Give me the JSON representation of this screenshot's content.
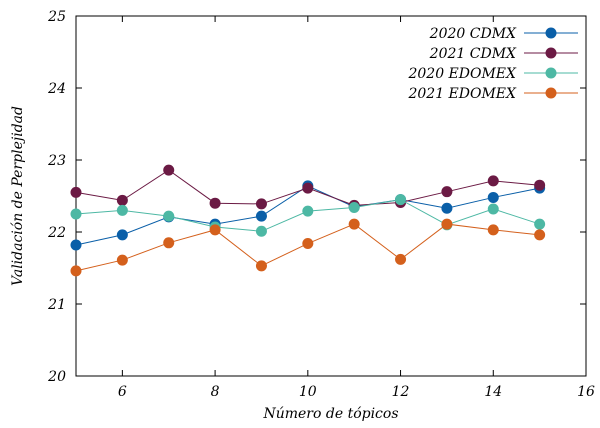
{
  "chart_data": {
    "type": "line",
    "title": "",
    "xlabel": "Número de tópicos",
    "ylabel": "Validación de Perplejidad",
    "xlim": [
      5,
      16
    ],
    "ylim": [
      20,
      25
    ],
    "xticks": [
      6,
      8,
      10,
      12,
      14,
      16
    ],
    "yticks": [
      20,
      21,
      22,
      23,
      24,
      25
    ],
    "grid": false,
    "legend_position": "top-right",
    "x": [
      5,
      6,
      7,
      8,
      9,
      10,
      11,
      12,
      13,
      14,
      15
    ],
    "series": [
      {
        "name": "2020 CDMX",
        "color": "#0a5fa8",
        "values": [
          21.82,
          21.96,
          22.21,
          22.11,
          22.22,
          22.64,
          22.35,
          22.45,
          22.33,
          22.48,
          22.61
        ]
      },
      {
        "name": "2021 CDMX",
        "color": "#6b1a44",
        "values": [
          22.55,
          22.44,
          22.86,
          22.4,
          22.39,
          22.61,
          22.37,
          22.41,
          22.56,
          22.71,
          22.65
        ]
      },
      {
        "name": "2020 EDOMEX",
        "color": "#4db8a4",
        "values": [
          22.25,
          22.3,
          22.22,
          22.07,
          22.01,
          22.29,
          22.34,
          22.45,
          22.1,
          22.32,
          22.11
        ]
      },
      {
        "name": "2021 EDOMEX",
        "color": "#d4601c",
        "values": [
          21.46,
          21.61,
          21.85,
          22.03,
          21.53,
          21.84,
          22.11,
          21.62,
          22.11,
          22.03,
          21.96
        ]
      }
    ]
  }
}
